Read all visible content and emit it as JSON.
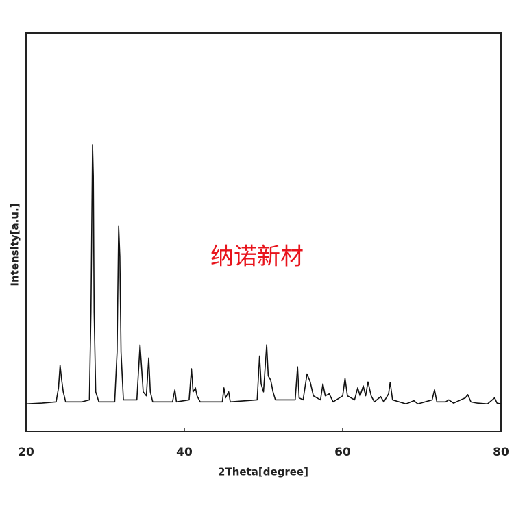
{
  "chart_data": {
    "type": "line",
    "x_label": "2Theta[degree]",
    "y_label": "Intensity[a.u.]",
    "watermark": "纳诺新材",
    "xlim": [
      20,
      80
    ],
    "xticks": [
      20,
      40,
      60,
      80
    ],
    "ylim": [
      0,
      100
    ],
    "color": "#111111",
    "x": [
      20,
      22,
      23.8,
      24.1,
      24.3,
      24.5,
      24.7,
      25,
      27,
      28,
      28.2,
      28.4,
      28.5,
      28.6,
      28.8,
      29.2,
      31.2,
      31.5,
      31.7,
      31.85,
      32,
      32.3,
      34,
      34.2,
      34.4,
      34.6,
      34.8,
      35.2,
      35.5,
      35.7,
      36,
      38.5,
      38.8,
      39,
      40.6,
      40.9,
      41.1,
      41.4,
      41.6,
      42,
      44.8,
      45,
      45.2,
      45.6,
      45.8,
      49.2,
      49.5,
      49.7,
      50,
      50.4,
      50.6,
      50.9,
      51.2,
      51.5,
      54,
      54.3,
      54.5,
      55,
      55.5,
      55.9,
      56.3,
      57.2,
      57.5,
      57.8,
      58.3,
      58.8,
      60,
      60.3,
      60.6,
      61.5,
      61.9,
      62.2,
      62.6,
      62.9,
      63.2,
      63.6,
      64,
      64.8,
      65.2,
      65.8,
      66,
      66.3,
      68,
      69,
      69.5,
      71.3,
      71.6,
      71.9,
      73,
      73.4,
      74,
      75.5,
      75.8,
      76.2,
      77,
      78.3,
      79.2,
      79.5,
      80
    ],
    "values": [
      7,
      7.2,
      7.5,
      11,
      16.7,
      13,
      10,
      7.5,
      7.5,
      8,
      30,
      72,
      64,
      30,
      10,
      7.5,
      7.5,
      20,
      51.5,
      44,
      20,
      8,
      8,
      15,
      21.8,
      16,
      10,
      9,
      18.5,
      10,
      7.5,
      7.5,
      10.5,
      7.5,
      8,
      15.8,
      10,
      11,
      9,
      7.5,
      7.5,
      11,
      8.5,
      10,
      7.5,
      8,
      19,
      12,
      10,
      21.8,
      14,
      13,
      10,
      8,
      8,
      16.3,
      8.5,
      8,
      14.5,
      12.5,
      9,
      8,
      12,
      9,
      9.5,
      7.5,
      9,
      13.4,
      9,
      8,
      11,
      9,
      11.5,
      9,
      12.5,
      9,
      7.5,
      8.8,
      7.5,
      9.5,
      12.4,
      8,
      7,
      7.8,
      7,
      8,
      10.5,
      7.5,
      7.5,
      8,
      7.2,
      8.5,
      9.3,
      7.5,
      7.2,
      7,
      8.5,
      7.2,
      7
    ]
  }
}
